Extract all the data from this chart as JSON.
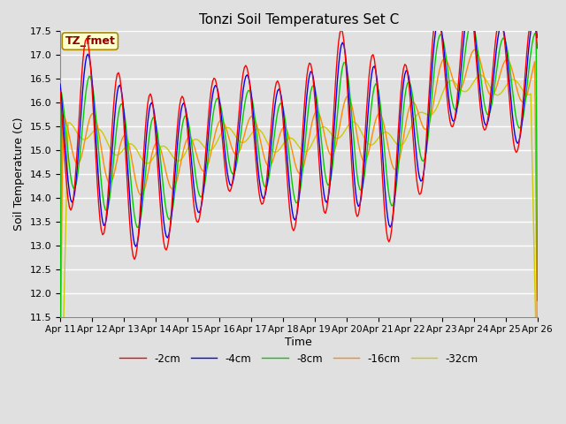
{
  "title": "Tonzi Soil Temperatures Set C",
  "xlabel": "Time",
  "ylabel": "Soil Temperature (C)",
  "ylim": [
    11.5,
    17.5
  ],
  "annotation_text": "TZ_fmet",
  "annotation_color": "#8B0000",
  "annotation_bg": "#FFFFCC",
  "bg_color": "#E8E8E8",
  "legend_labels": [
    "-2cm",
    "-4cm",
    "-8cm",
    "-16cm",
    "-32cm"
  ],
  "line_colors": [
    "#FF0000",
    "#0000FF",
    "#00CC00",
    "#FF8C00",
    "#CCCC00"
  ],
  "x_tick_labels": [
    "Apr 11",
    "Apr 12",
    "Apr 13",
    "Apr 14",
    "Apr 15",
    "Apr 16",
    "Apr 17",
    "Apr 18",
    "Apr 19",
    "Apr 20",
    "Apr 21",
    "Apr 22",
    "Apr 23",
    "Apr 24",
    "Apr 25",
    "Apr 26"
  ],
  "x_ticks": [
    0,
    24,
    48,
    72,
    96,
    120,
    144,
    168,
    192,
    216,
    240,
    264,
    288,
    312,
    336,
    360
  ],
  "figsize": [
    6.4,
    4.8
  ],
  "dpi": 100
}
